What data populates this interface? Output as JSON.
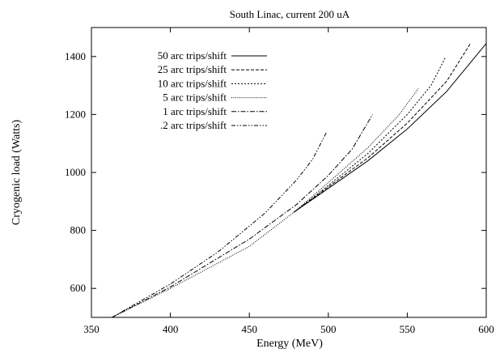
{
  "chart_data": {
    "type": "line",
    "title": "South Linac, current 200 uA",
    "xlabel": "Energy (MeV)",
    "ylabel": "Cryogenic load (Watts)",
    "xlim": [
      350,
      600
    ],
    "ylim": [
      500,
      1500
    ],
    "x_ticks": [
      "350",
      "400",
      "450",
      "500",
      "550",
      "600"
    ],
    "y_ticks": [
      "600",
      "800",
      "1000",
      "1200",
      "1400"
    ],
    "legend_position": "top-left",
    "grid": false,
    "series": [
      {
        "name": "50 arc trips/shift",
        "style": "solid",
        "x": [
          478,
          500,
          525,
          550,
          575,
          600
        ],
        "y": [
          862,
          945,
          1040,
          1150,
          1280,
          1445
        ]
      },
      {
        "name": "25 arc trips/shift",
        "style": "dashed",
        "x": [
          478,
          500,
          525,
          550,
          575,
          590
        ],
        "y": [
          862,
          950,
          1050,
          1170,
          1315,
          1445
        ]
      },
      {
        "name": "10 arc trips/shift",
        "style": "dotted",
        "x": [
          478,
          500,
          525,
          550,
          565,
          574
        ],
        "y": [
          862,
          955,
          1065,
          1200,
          1300,
          1395
        ]
      },
      {
        "name": "5 arc trips/shift",
        "style": "fine-dotted",
        "x": [
          363,
          400,
          450,
          478,
          500,
          525,
          545,
          557
        ],
        "y": [
          500,
          600,
          745,
          862,
          965,
          1085,
          1200,
          1290
        ]
      },
      {
        "name": "1 arc trips/shift",
        "style": "dash-dot",
        "x": [
          363,
          400,
          450,
          480,
          500,
          515,
          528
        ],
        "y": [
          500,
          605,
          770,
          890,
          990,
          1080,
          1200
        ]
      },
      {
        "name": ".2 arc trips/shift",
        "style": "dash-dot-dot",
        "x": [
          363,
          400,
          430,
          460,
          480,
          490,
          499
        ],
        "y": [
          500,
          615,
          725,
          860,
          975,
          1045,
          1140
        ]
      }
    ]
  }
}
